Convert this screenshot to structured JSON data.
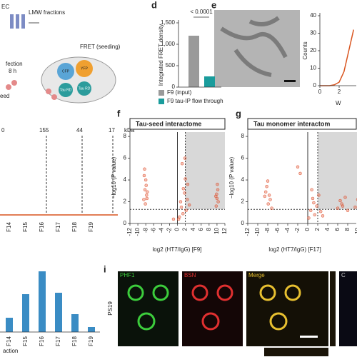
{
  "schematic": {
    "sec": "EC",
    "lmw": "LMW fractions",
    "fret": "FRET (seeding)",
    "transfection": "fection",
    "time": "8 h",
    "seed": "eed",
    "cfp": "CFP",
    "yfp": "YFP",
    "tau_rd_1": "Tau RD",
    "tau_rd_2": "Tau RD"
  },
  "panel_letters": [
    "d",
    "e",
    "f",
    "g",
    "i"
  ],
  "gel": {
    "markers": [
      "0",
      "155",
      "44",
      "17"
    ],
    "unit": "kDa",
    "fractions": [
      "F14",
      "F15",
      "F16",
      "F17",
      "F18",
      "F19"
    ]
  },
  "bar_left": {
    "fractions": [
      "F14",
      "F15",
      "F16",
      "F17",
      "F18",
      "F19"
    ],
    "axis_label": "action"
  },
  "panel_i": {
    "channels": [
      "PHF1",
      "BSN",
      "Merge",
      "C"
    ],
    "genotype": "PS19"
  },
  "chart_data": [
    {
      "type": "bar",
      "y_label": "Integrated FRET density",
      "annotation": "< 0.0001",
      "series": [
        {
          "name": "F9 (input)",
          "color": "#9a9a9a",
          "values": [
            1200
          ]
        },
        {
          "name": "F9 tau-IP flow through",
          "color": "#1a9c9c",
          "values": [
            250
          ]
        }
      ],
      "ylim": [
        0,
        1500
      ],
      "yticks": [
        0,
        500,
        {
          "value": 1000,
          "label": "1,000"
        },
        {
          "value": 1500,
          "label": "1,500"
        }
      ]
    },
    {
      "type": "line",
      "y_label": "Counts",
      "x_label": "W",
      "color": "#d9541e",
      "x": [
        0,
        0.5,
        1,
        1.5,
        2,
        2.5,
        3,
        3.5
      ],
      "values": [
        0,
        0,
        0,
        0.5,
        2,
        8,
        20,
        32
      ],
      "xlim": [
        0,
        4
      ],
      "xticks": [
        0,
        2
      ],
      "ylim": [
        0,
        40
      ],
      "yticks": [
        0,
        10,
        20,
        30,
        40
      ]
    },
    {
      "type": "scatter",
      "title": "Tau-seed interactome",
      "y_label": "−log10 (P value)",
      "x_label": "log2 (HT7/IgG) [F9]",
      "color": "#e0502e",
      "x": [
        -8.5,
        -8.2,
        -8,
        -7.8,
        -8.3,
        -7.9,
        -8.1,
        -7.6,
        -8.4,
        -7.7,
        -1,
        0.5,
        1,
        1.5,
        2,
        2.5,
        1.2,
        1.8,
        2.2,
        0.8,
        3,
        1.4,
        2.6,
        1.9,
        0.3,
        9.8,
        10,
        10.2,
        9.9,
        10.1,
        10.3,
        9.7
      ],
      "values": [
        2.2,
        3.1,
        4,
        2.6,
        5,
        3.5,
        1.8,
        2.9,
        4.4,
        2.3,
        0.4,
        0.6,
        1.5,
        3.2,
        4.1,
        2.2,
        5.5,
        2.8,
        1.2,
        2,
        1.7,
        0.9,
        3.6,
        6,
        0.4,
        1.6,
        2.3,
        3.1,
        2.7,
        3.6,
        2,
        2.5
      ],
      "xlim": [
        -12,
        12
      ],
      "xticks": [
        -12,
        -10,
        -8,
        -6,
        -4,
        -2,
        0,
        2,
        4,
        6,
        8,
        10,
        12
      ],
      "ylim": [
        0,
        8.4
      ],
      "yticks": [
        0,
        2,
        4,
        6,
        8
      ],
      "vlines": [
        0,
        2
      ],
      "hlines": [
        1.3
      ]
    },
    {
      "type": "scatter",
      "title": "Tau monomer interactom",
      "y_label": "−log10 (P value)",
      "x_label": "log2 (HT7/IgG) [F17]",
      "color": "#e0502e",
      "x": [
        -8.6,
        -8.2,
        -7.9,
        -7.5,
        -8,
        -7.2,
        -8.4,
        -7.7,
        -2,
        -1.5,
        0.2,
        0.6,
        1,
        1.4,
        1.8,
        2.2,
        0.8,
        1.2,
        2.6,
        3,
        6,
        6.5,
        7,
        7.5,
        8,
        6.8,
        9.5,
        10
      ],
      "values": [
        2.5,
        3.4,
        1.8,
        2.2,
        3.9,
        1.4,
        2.9,
        2.6,
        5.2,
        4.6,
        0.5,
        1.2,
        2.3,
        0.8,
        1.6,
        2.6,
        3.1,
        1.9,
        1.1,
        0.7,
        1.4,
        2.1,
        1.6,
        2.4,
        1.2,
        1.8,
        1.5,
        2.2
      ],
      "xlim": [
        -12,
        12
      ],
      "xticks": [
        -12,
        -10,
        -8,
        -6,
        -4,
        -2,
        0,
        2,
        4,
        6,
        8,
        10,
        12
      ],
      "ylim": [
        0,
        8.4
      ],
      "yticks": [
        0,
        2,
        4,
        6,
        8
      ],
      "vlines": [
        0,
        2
      ],
      "hlines": [
        1.3
      ]
    }
  ]
}
